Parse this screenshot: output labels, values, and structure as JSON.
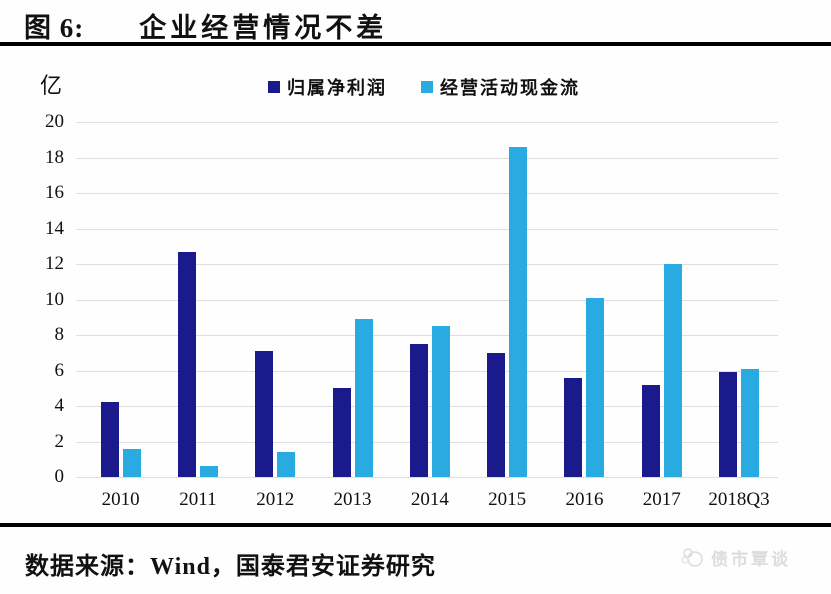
{
  "header": {
    "figure_label": "图 6:",
    "title": "企业经营情况不差"
  },
  "chart_data": {
    "type": "bar",
    "title": "企业经营情况不差",
    "unit_label": "亿",
    "categories": [
      "2010",
      "2011",
      "2012",
      "2013",
      "2014",
      "2015",
      "2016",
      "2017",
      "2018Q3"
    ],
    "series": [
      {
        "name": "归属净利润",
        "color": "#1a1a8c",
        "values": [
          4.2,
          12.7,
          7.1,
          5.0,
          7.5,
          7.0,
          5.6,
          5.2,
          5.9
        ]
      },
      {
        "name": "经营活动现金流",
        "color": "#29abe2",
        "values": [
          1.6,
          0.6,
          1.4,
          8.9,
          8.5,
          18.6,
          10.1,
          12.0,
          6.1
        ]
      }
    ],
    "ylim": [
      0,
      20
    ],
    "yticks": [
      0,
      2,
      4,
      6,
      8,
      10,
      12,
      14,
      16,
      18,
      20
    ],
    "grid": true,
    "legend_position": "top"
  },
  "footer": {
    "source": "数据来源：Wind，国泰君安证券研究",
    "watermark": "债市覃谈"
  },
  "colors": {
    "net_profit": "#1a1a8c",
    "cash_flow": "#29abe2",
    "gridline": "#dedee2",
    "rule": "#000000",
    "watermark": "#dcdcdc"
  }
}
